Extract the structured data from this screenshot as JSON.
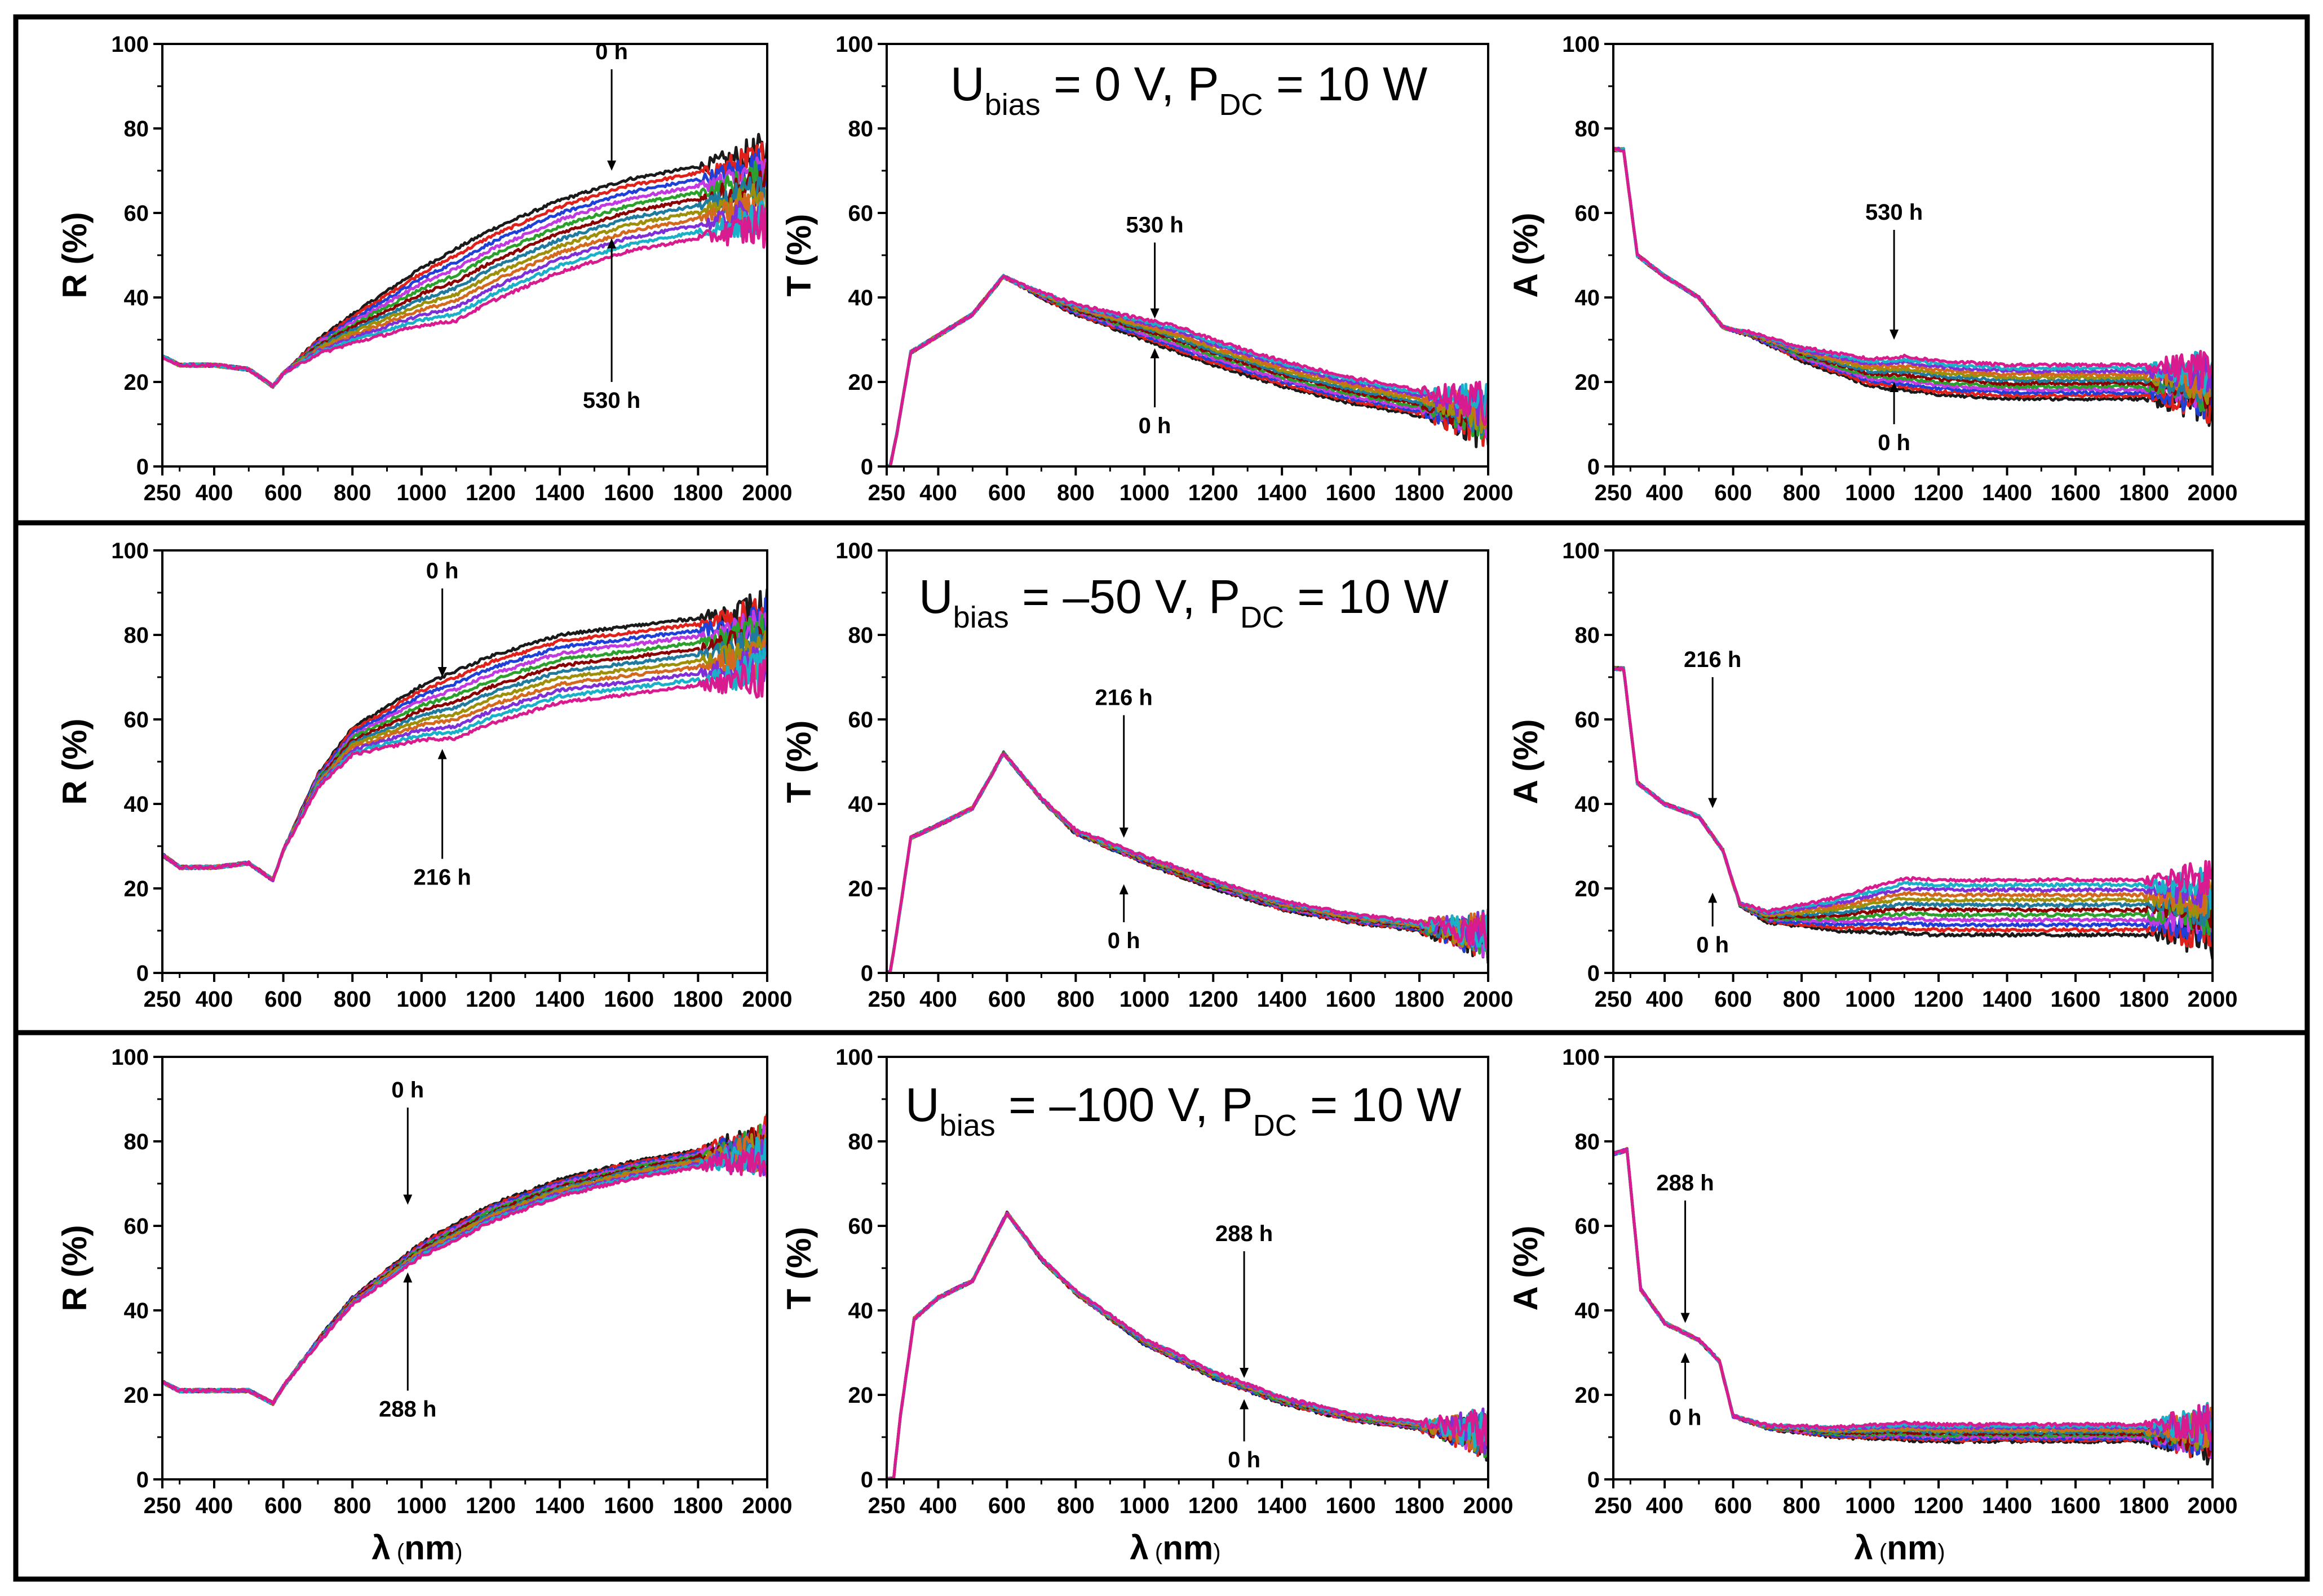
{
  "figure": {
    "rows": [
      {
        "condition": {
          "u_main": "U",
          "u_sub": "bias",
          "u_value": " = 0 V, P",
          "p_sub": "DC",
          "p_value": " = 10 W"
        },
        "panels": [
          "R-0V",
          "T-0V",
          "A-0V"
        ]
      },
      {
        "condition": {
          "u_main": "U",
          "u_sub": "bias",
          "u_value": " = –50 V, P",
          "p_sub": "DC",
          "p_value": " = 10 W"
        },
        "panels": [
          "R-50V",
          "T-50V",
          "A-50V"
        ]
      },
      {
        "condition": {
          "u_main": "U",
          "u_sub": "bias",
          "u_value": " = –100 V, P",
          "p_sub": "DC",
          "p_value": " = 10 W"
        },
        "panels": [
          "R-100V",
          "T-100V",
          "A-100V"
        ]
      }
    ],
    "xlabel": {
      "lambda": "λ",
      "unit_open": " (",
      "unit": "nm",
      "unit_close": ")"
    }
  },
  "series_colors": [
    "#1a1a1a",
    "#e0201a",
    "#1f3fd6",
    "#c03adf",
    "#2ca02c",
    "#8b0000",
    "#1f7a9e",
    "#9e8f0a",
    "#d2691e",
    "#7e2fd6",
    "#1ab0c8",
    "#d81b8f",
    "#6b8e23"
  ],
  "chart_data": [
    {
      "id": "R-0V",
      "type": "line",
      "ylabel": "R (%)",
      "xlim": [
        250,
        2000
      ],
      "ylim": [
        0,
        100
      ],
      "xticks": [
        250,
        400,
        600,
        800,
        1000,
        1200,
        1400,
        1600,
        1800,
        2000
      ],
      "yticks": [
        0,
        20,
        40,
        60,
        80,
        100
      ],
      "nseries": 12,
      "spread": 17,
      "series": [
        {
          "name": "0 h",
          "values": [
            [
              250,
              26
            ],
            [
              300,
              24
            ],
            [
              400,
              24
            ],
            [
              500,
              23
            ],
            [
              570,
              19
            ],
            [
              600,
              22
            ],
            [
              700,
              30
            ],
            [
              800,
              36
            ],
            [
              1000,
              47
            ],
            [
              1200,
              56
            ],
            [
              1400,
              63
            ],
            [
              1600,
              68
            ],
            [
              1800,
              71
            ],
            [
              2000,
              74
            ]
          ]
        }
      ],
      "annotations": [
        {
          "text": "0 h",
          "x": 1550,
          "tip": 70,
          "tail": 94
        },
        {
          "text": "530 h",
          "x": 1550,
          "tip": 54,
          "tail": 20
        }
      ]
    },
    {
      "id": "T-0V",
      "type": "line",
      "ylabel": "T (%)",
      "xlim": [
        250,
        2000
      ],
      "ylim": [
        0,
        100
      ],
      "xticks": [
        250,
        400,
        600,
        800,
        1000,
        1200,
        1400,
        1600,
        1800,
        2000
      ],
      "yticks": [
        0,
        20,
        40,
        60,
        80,
        100
      ],
      "nseries": 12,
      "spread": 6,
      "series": [
        {
          "name": "0 h",
          "values": [
            [
              250,
              0
            ],
            [
              260,
              0
            ],
            [
              280,
              8
            ],
            [
              320,
              27
            ],
            [
              400,
              31
            ],
            [
              500,
              36
            ],
            [
              590,
              45
            ],
            [
              700,
              40
            ],
            [
              800,
              36
            ],
            [
              1000,
              30
            ],
            [
              1200,
              24
            ],
            [
              1400,
              19
            ],
            [
              1600,
              15
            ],
            [
              1800,
              12
            ],
            [
              2000,
              9
            ]
          ]
        }
      ],
      "annotations": [
        {
          "text": "530 h",
          "x": 1030,
          "tip": 35,
          "tail": 53
        },
        {
          "text": "0 h",
          "x": 1030,
          "tip": 28,
          "tail": 14
        }
      ]
    },
    {
      "id": "A-0V",
      "type": "line",
      "ylabel": "A (%)",
      "xlim": [
        250,
        2000
      ],
      "ylim": [
        0,
        100
      ],
      "xticks": [
        250,
        400,
        600,
        800,
        1000,
        1200,
        1400,
        1600,
        1800,
        2000
      ],
      "yticks": [
        0,
        20,
        40,
        60,
        80,
        100
      ],
      "nseries": 12,
      "spread": 8,
      "series": [
        {
          "name": "0 h",
          "values": [
            [
              250,
              75
            ],
            [
              280,
              75
            ],
            [
              320,
              50
            ],
            [
              400,
              45
            ],
            [
              500,
              40
            ],
            [
              570,
              33
            ],
            [
              650,
              31
            ],
            [
              800,
              25
            ],
            [
              1000,
              19
            ],
            [
              1200,
              17
            ],
            [
              1400,
              16
            ],
            [
              1600,
              16
            ],
            [
              1800,
              16
            ],
            [
              2000,
              15
            ]
          ]
        }
      ],
      "annotations": [
        {
          "text": "530 h",
          "x": 1070,
          "tip": 30,
          "tail": 56
        },
        {
          "text": "0 h",
          "x": 1070,
          "tip": 20,
          "tail": 10
        }
      ]
    },
    {
      "id": "R-50V",
      "type": "line",
      "ylabel": "R (%)",
      "xlim": [
        250,
        2000
      ],
      "ylim": [
        0,
        100
      ],
      "xticks": [
        250,
        400,
        600,
        800,
        1000,
        1200,
        1400,
        1600,
        1800,
        2000
      ],
      "yticks": [
        0,
        20,
        40,
        60,
        80,
        100
      ],
      "nseries": 12,
      "spread": 16,
      "series": [
        {
          "name": "0 h",
          "values": [
            [
              250,
              28
            ],
            [
              300,
              25
            ],
            [
              400,
              25
            ],
            [
              500,
              26
            ],
            [
              570,
              22
            ],
            [
              600,
              29
            ],
            [
              700,
              47
            ],
            [
              800,
              58
            ],
            [
              1000,
              68
            ],
            [
              1200,
              75
            ],
            [
              1400,
              80
            ],
            [
              1600,
              82
            ],
            [
              1800,
              84
            ],
            [
              2000,
              86
            ]
          ]
        }
      ],
      "annotations": [
        {
          "text": "0 h",
          "x": 1060,
          "tip": 70,
          "tail": 91
        },
        {
          "text": "216 h",
          "x": 1060,
          "tip": 53,
          "tail": 27
        }
      ]
    },
    {
      "id": "T-50V",
      "type": "line",
      "ylabel": "T (%)",
      "xlim": [
        250,
        2000
      ],
      "ylim": [
        0,
        100
      ],
      "xticks": [
        250,
        400,
        600,
        800,
        1000,
        1200,
        1400,
        1600,
        1800,
        2000
      ],
      "yticks": [
        0,
        20,
        40,
        60,
        80,
        100
      ],
      "nseries": 12,
      "spread": 2,
      "series": [
        {
          "name": "0 h",
          "values": [
            [
              250,
              0
            ],
            [
              260,
              0
            ],
            [
              280,
              10
            ],
            [
              320,
              32
            ],
            [
              400,
              35
            ],
            [
              500,
              39
            ],
            [
              590,
              52
            ],
            [
              700,
              41
            ],
            [
              800,
              33
            ],
            [
              1000,
              26
            ],
            [
              1200,
              20
            ],
            [
              1400,
              15
            ],
            [
              1600,
              12
            ],
            [
              1800,
              10
            ],
            [
              2000,
              8
            ]
          ]
        }
      ],
      "annotations": [
        {
          "text": "216 h",
          "x": 940,
          "tip": 32,
          "tail": 61
        },
        {
          "text": "0 h",
          "x": 940,
          "tip": 21,
          "tail": 12
        }
      ]
    },
    {
      "id": "A-50V",
      "type": "line",
      "ylabel": "A (%)",
      "xlim": [
        250,
        2000
      ],
      "ylim": [
        0,
        100
      ],
      "xticks": [
        250,
        400,
        600,
        800,
        1000,
        1200,
        1400,
        1600,
        1800,
        2000
      ],
      "yticks": [
        0,
        20,
        40,
        60,
        80,
        100
      ],
      "nseries": 12,
      "spread": 13,
      "series": [
        {
          "name": "0 h",
          "values": [
            [
              250,
              72
            ],
            [
              280,
              72
            ],
            [
              320,
              45
            ],
            [
              400,
              40
            ],
            [
              500,
              37
            ],
            [
              570,
              29
            ],
            [
              620,
              16
            ],
            [
              700,
              12
            ],
            [
              900,
              10
            ],
            [
              1200,
              9
            ],
            [
              1600,
              9
            ],
            [
              2000,
              9
            ]
          ]
        }
      ],
      "annotations": [
        {
          "text": "216 h",
          "x": 540,
          "tip": 39,
          "tail": 70
        },
        {
          "text": "0 h",
          "x": 540,
          "tip": 19,
          "tail": 11
        }
      ]
    },
    {
      "id": "R-100V",
      "type": "line",
      "ylabel": "R (%)",
      "xlim": [
        250,
        2000
      ],
      "ylim": [
        0,
        100
      ],
      "xticks": [
        250,
        400,
        600,
        800,
        1000,
        1200,
        1400,
        1600,
        1800,
        2000
      ],
      "yticks": [
        0,
        20,
        40,
        60,
        80,
        100
      ],
      "nseries": 12,
      "spread": 4,
      "series": [
        {
          "name": "0 h",
          "values": [
            [
              250,
              23
            ],
            [
              300,
              21
            ],
            [
              400,
              21
            ],
            [
              500,
              21
            ],
            [
              570,
              18
            ],
            [
              600,
              22
            ],
            [
              700,
              33
            ],
            [
              800,
              43
            ],
            [
              1000,
              56
            ],
            [
              1200,
              65
            ],
            [
              1400,
              71
            ],
            [
              1600,
              75
            ],
            [
              1800,
              78
            ],
            [
              2000,
              81
            ]
          ]
        }
      ],
      "annotations": [
        {
          "text": "0 h",
          "x": 960,
          "tip": 65,
          "tail": 88
        },
        {
          "text": "288 h",
          "x": 960,
          "tip": 49,
          "tail": 21
        }
      ]
    },
    {
      "id": "T-100V",
      "type": "line",
      "ylabel": "T (%)",
      "xlim": [
        250,
        2000
      ],
      "ylim": [
        0,
        100
      ],
      "xticks": [
        250,
        400,
        600,
        800,
        1000,
        1200,
        1400,
        1600,
        1800,
        2000
      ],
      "yticks": [
        0,
        20,
        40,
        60,
        80,
        100
      ],
      "nseries": 12,
      "spread": 1.5,
      "series": [
        {
          "name": "0 h",
          "values": [
            [
              250,
              0
            ],
            [
              270,
              0
            ],
            [
              290,
              15
            ],
            [
              330,
              38
            ],
            [
              400,
              43
            ],
            [
              500,
              47
            ],
            [
              600,
              63
            ],
            [
              700,
              52
            ],
            [
              800,
              44
            ],
            [
              1000,
              32
            ],
            [
              1200,
              24
            ],
            [
              1400,
              18
            ],
            [
              1600,
              14
            ],
            [
              1800,
              12
            ],
            [
              2000,
              10
            ]
          ]
        }
      ],
      "annotations": [
        {
          "text": "288 h",
          "x": 1290,
          "tip": 24,
          "tail": 54
        },
        {
          "text": "0 h",
          "x": 1290,
          "tip": 19,
          "tail": 9
        }
      ]
    },
    {
      "id": "A-100V",
      "type": "line",
      "ylabel": "A (%)",
      "xlim": [
        250,
        2000
      ],
      "ylim": [
        0,
        100
      ],
      "xticks": [
        250,
        400,
        600,
        800,
        1000,
        1200,
        1400,
        1600,
        1800,
        2000
      ],
      "yticks": [
        0,
        20,
        40,
        60,
        80,
        100
      ],
      "nseries": 12,
      "spread": 4,
      "series": [
        {
          "name": "0 h",
          "values": [
            [
              250,
              77
            ],
            [
              290,
              78
            ],
            [
              330,
              45
            ],
            [
              400,
              37
            ],
            [
              500,
              33
            ],
            [
              560,
              28
            ],
            [
              600,
              15
            ],
            [
              700,
              12
            ],
            [
              900,
              10
            ],
            [
              1200,
              9
            ],
            [
              1600,
              9
            ],
            [
              2000,
              9
            ]
          ]
        }
      ],
      "annotations": [
        {
          "text": "288 h",
          "x": 460,
          "tip": 37,
          "tail": 66
        },
        {
          "text": "0 h",
          "x": 460,
          "tip": 30,
          "tail": 19
        }
      ]
    }
  ]
}
